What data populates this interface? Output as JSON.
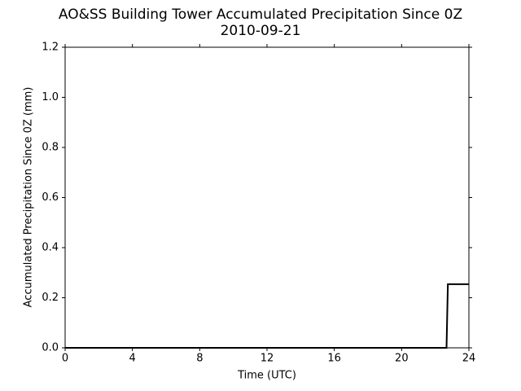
{
  "chart_data": {
    "type": "line",
    "title": "AO&SS Building Tower Accumulated Precipitation Since 0Z",
    "subtitle": "2010-09-21",
    "x_label": "Time (UTC)",
    "y_label": "Accumulated Precipitation Since 0Z (mm)",
    "x": [
      0,
      22.67,
      22.75,
      24
    ],
    "series": [
      {
        "color": "#000000",
        "values": [
          0,
          0,
          0.254,
          0.254
        ]
      }
    ],
    "xlim": [
      0,
      24
    ],
    "xticks": [
      0,
      4,
      8,
      12,
      16,
      20,
      24
    ],
    "ylim": [
      0,
      1.2
    ],
    "yticks": [
      {
        "value": 0,
        "label": "0.0"
      },
      0.2,
      0.4,
      0.6,
      0.8,
      {
        "value": 1,
        "label": "1.0"
      },
      1.2
    ],
    "grid": false
  }
}
